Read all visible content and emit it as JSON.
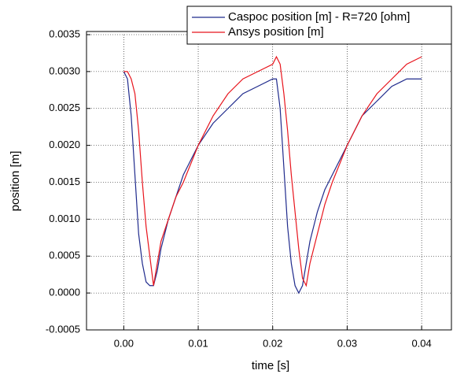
{
  "chart_data": {
    "type": "line",
    "x_label": "time [s]",
    "y_label": "position [m]",
    "x": [
      0,
      0.0005,
      0.001,
      0.0015,
      0.002,
      0.0025,
      0.003,
      0.0035,
      0.004,
      0.0045,
      0.005,
      0.006,
      0.007,
      0.008,
      0.01,
      0.012,
      0.014,
      0.016,
      0.018,
      0.02,
      0.0205,
      0.021,
      0.0215,
      0.022,
      0.0225,
      0.023,
      0.0235,
      0.024,
      0.0245,
      0.025,
      0.026,
      0.027,
      0.028,
      0.03,
      0.032,
      0.034,
      0.036,
      0.038,
      0.04
    ],
    "series": [
      {
        "name": "Caspoc position [m] - R=720 [ohm]",
        "color": "#1f2a8c",
        "values": [
          0.003,
          0.0029,
          0.0024,
          0.0016,
          0.0008,
          0.0004,
          0.00015,
          0.0001,
          0.0001,
          0.0003,
          0.0006,
          0.001,
          0.0013,
          0.0016,
          0.002,
          0.0023,
          0.0025,
          0.0027,
          0.0028,
          0.0029,
          0.0029,
          0.0025,
          0.0017,
          0.0009,
          0.0004,
          0.0001,
          0,
          0.0001,
          0.0004,
          0.0007,
          0.0011,
          0.0014,
          0.0016,
          0.002,
          0.0024,
          0.0026,
          0.0028,
          0.0029,
          0.0029
        ]
      },
      {
        "name": "Ansys position [m]",
        "color": "#e8141c",
        "values": [
          0.003,
          0.003,
          0.0029,
          0.0027,
          0.0022,
          0.0015,
          0.0009,
          0.0005,
          0.0001,
          0.0004,
          0.0007,
          0.001,
          0.0013,
          0.0015,
          0.002,
          0.0024,
          0.0027,
          0.0029,
          0.003,
          0.0031,
          0.0032,
          0.0031,
          0.0027,
          0.0022,
          0.0016,
          0.0011,
          0.0006,
          0.0002,
          0.0001,
          0.0004,
          0.0008,
          0.0012,
          0.0015,
          0.002,
          0.0024,
          0.0027,
          0.0029,
          0.0031,
          0.0032
        ]
      }
    ],
    "xlim": [
      -0.005,
      0.044
    ],
    "ylim": [
      -0.0005,
      0.0035
    ],
    "xticks": [
      {
        "value": 0,
        "label": "0.00"
      },
      0.01,
      0.02,
      0.03,
      0.04
    ],
    "yticks": [
      -0.0005,
      {
        "value": 0,
        "label": "0.0000"
      },
      0.0005,
      {
        "value": 0.001,
        "label": "0.0010"
      },
      0.0015,
      {
        "value": 0.002,
        "label": "0.0020"
      },
      0.0025,
      {
        "value": 0.003,
        "label": "0.0030"
      },
      0.0035
    ],
    "grid": true,
    "legend": "top-right"
  }
}
